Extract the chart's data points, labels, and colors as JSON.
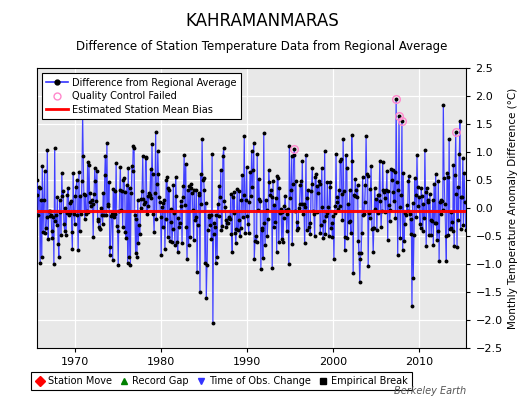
{
  "title": "KAHRAMANMARAS",
  "subtitle": "Difference of Station Temperature Data from Regional Average",
  "ylabel": "Monthly Temperature Anomaly Difference (°C)",
  "xlim": [
    1965.5,
    2015.5
  ],
  "ylim": [
    -2.5,
    2.5
  ],
  "yticks": [
    -2.5,
    -2,
    -1.5,
    -1,
    -0.5,
    0,
    0.5,
    1,
    1.5,
    2,
    2.5
  ],
  "xticks": [
    1970,
    1980,
    1990,
    2000,
    2010
  ],
  "mean_bias": -0.05,
  "background_color": "#e8e8e8",
  "plot_bg": "#e8e8e8",
  "line_color": "#3333ff",
  "line_fill_color": "#aaaaff",
  "bias_color": "#ff0000",
  "qc_color": "#ff88cc",
  "dot_color": "#000000",
  "title_fontsize": 12,
  "subtitle_fontsize": 8.5,
  "ylabel_fontsize": 7.5,
  "tick_fontsize": 8,
  "legend_fontsize": 7,
  "watermark": "Berkeley Earth",
  "start_year": 1965.5,
  "n_months": 600,
  "random_seed": 42
}
